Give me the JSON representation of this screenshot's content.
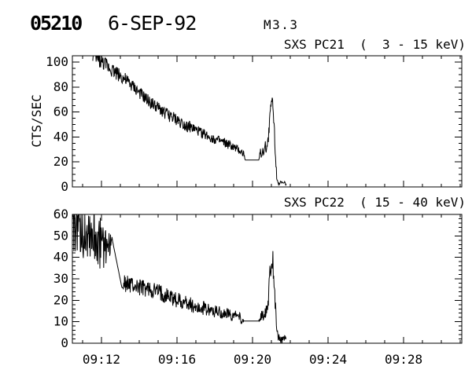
{
  "header": {
    "event_number": "05210",
    "date": "6-SEP-92",
    "flare_class": "M3.3"
  },
  "colors": {
    "foreground": "#000000",
    "background": "#ffffff"
  },
  "x_axis": {
    "tick_labels": [
      "09:12",
      "09:16",
      "09:20",
      "09:24",
      "09:28"
    ],
    "major_ticks_min": [
      12,
      16,
      20,
      24,
      28
    ],
    "minor_step_min": 1,
    "domain_minutes_after_0900": [
      10.46,
      31.08
    ]
  },
  "chart_data": [
    {
      "type": "line",
      "title": "SXS PC21  (  3 - 15 keV)",
      "ylabel": "CTS/SEC",
      "ylim": [
        0,
        100
      ],
      "ylim_display": [
        0,
        105
      ],
      "ytick_range": [
        0,
        100
      ],
      "ytick_major": 20,
      "ytick_minor": 5,
      "ytick_values": [
        0,
        20,
        40,
        60,
        80,
        100
      ],
      "ytick_labels": [
        "0",
        "20",
        "40",
        "60",
        "80",
        "100"
      ],
      "trend_points_format": "[minutes_after_09:00, counts_per_sec, jitter_amplitude]",
      "series": [
        {
          "name": "PC21",
          "trend_points": [
            [
              11.54,
              107,
              8
            ],
            [
              12.0,
              100,
              6
            ],
            [
              12.3,
              97,
              6
            ],
            [
              13.0,
              89,
              6
            ],
            [
              13.7,
              80,
              5
            ],
            [
              14.3,
              71,
              5
            ],
            [
              15.0,
              63,
              5
            ],
            [
              15.7,
              56,
              5
            ],
            [
              16.4,
              50,
              5
            ],
            [
              17.2,
              44,
              4
            ],
            [
              18.0,
              38,
              4
            ],
            [
              18.7,
              34,
              4
            ],
            [
              19.3,
              29,
              3
            ],
            [
              19.55,
              26,
              3
            ],
            [
              19.62,
              21.5,
              0
            ],
            [
              20.33,
              21.5,
              0
            ],
            [
              20.42,
              27,
              4
            ],
            [
              20.62,
              30,
              5
            ],
            [
              20.8,
              35,
              6
            ],
            [
              20.9,
              50,
              8
            ],
            [
              21.0,
              70,
              7
            ],
            [
              21.08,
              66,
              6
            ],
            [
              21.18,
              38,
              6
            ],
            [
              21.28,
              8,
              3
            ],
            [
              21.4,
              3,
              2
            ],
            [
              21.78,
              2.5,
              2
            ]
          ]
        }
      ]
    },
    {
      "type": "line",
      "title": "SXS PC22  ( 15 - 40 keV)",
      "ylabel": "",
      "ylim": [
        0,
        60
      ],
      "ylim_display": [
        0,
        60
      ],
      "ytick_range": [
        0,
        60
      ],
      "ytick_major": 10,
      "ytick_minor": 2,
      "ytick_values": [
        0,
        10,
        20,
        30,
        40,
        50,
        60
      ],
      "ytick_labels": [
        "0",
        "10",
        "20",
        "30",
        "40",
        "50",
        "60"
      ],
      "trend_points_format": "[minutes_after_09:00, counts_per_sec, jitter_amplitude]",
      "series": [
        {
          "name": "PC22",
          "trend_points": [
            [
              10.46,
              58,
              16
            ],
            [
              11.2,
              54,
              16
            ],
            [
              11.8,
              48,
              13
            ],
            [
              12.2,
              45,
              11
            ],
            [
              12.54,
              47,
              4
            ],
            [
              12.6,
              47,
              0
            ],
            [
              13.08,
              26,
              0
            ],
            [
              13.2,
              28,
              4
            ],
            [
              13.9,
              26,
              4
            ],
            [
              14.9,
              24,
              4
            ],
            [
              15.6,
              21.5,
              4
            ],
            [
              16.4,
              19,
              3.5
            ],
            [
              17.0,
              17,
              3.5
            ],
            [
              17.8,
              15.5,
              3
            ],
            [
              18.6,
              13.5,
              3
            ],
            [
              19.2,
              12.5,
              2.5
            ],
            [
              19.45,
              11,
              2.5
            ],
            [
              19.55,
              10.3,
              0
            ],
            [
              20.33,
              10.3,
              0
            ],
            [
              20.42,
              12,
              2.5
            ],
            [
              20.65,
              13.5,
              3
            ],
            [
              20.82,
              20,
              6
            ],
            [
              20.92,
              33,
              7
            ],
            [
              21.02,
              41,
              5
            ],
            [
              21.1,
              36,
              6
            ],
            [
              21.2,
              20,
              5
            ],
            [
              21.3,
              5,
              3
            ],
            [
              21.42,
              2,
              2
            ],
            [
              21.78,
              2,
              2
            ]
          ]
        }
      ]
    }
  ]
}
